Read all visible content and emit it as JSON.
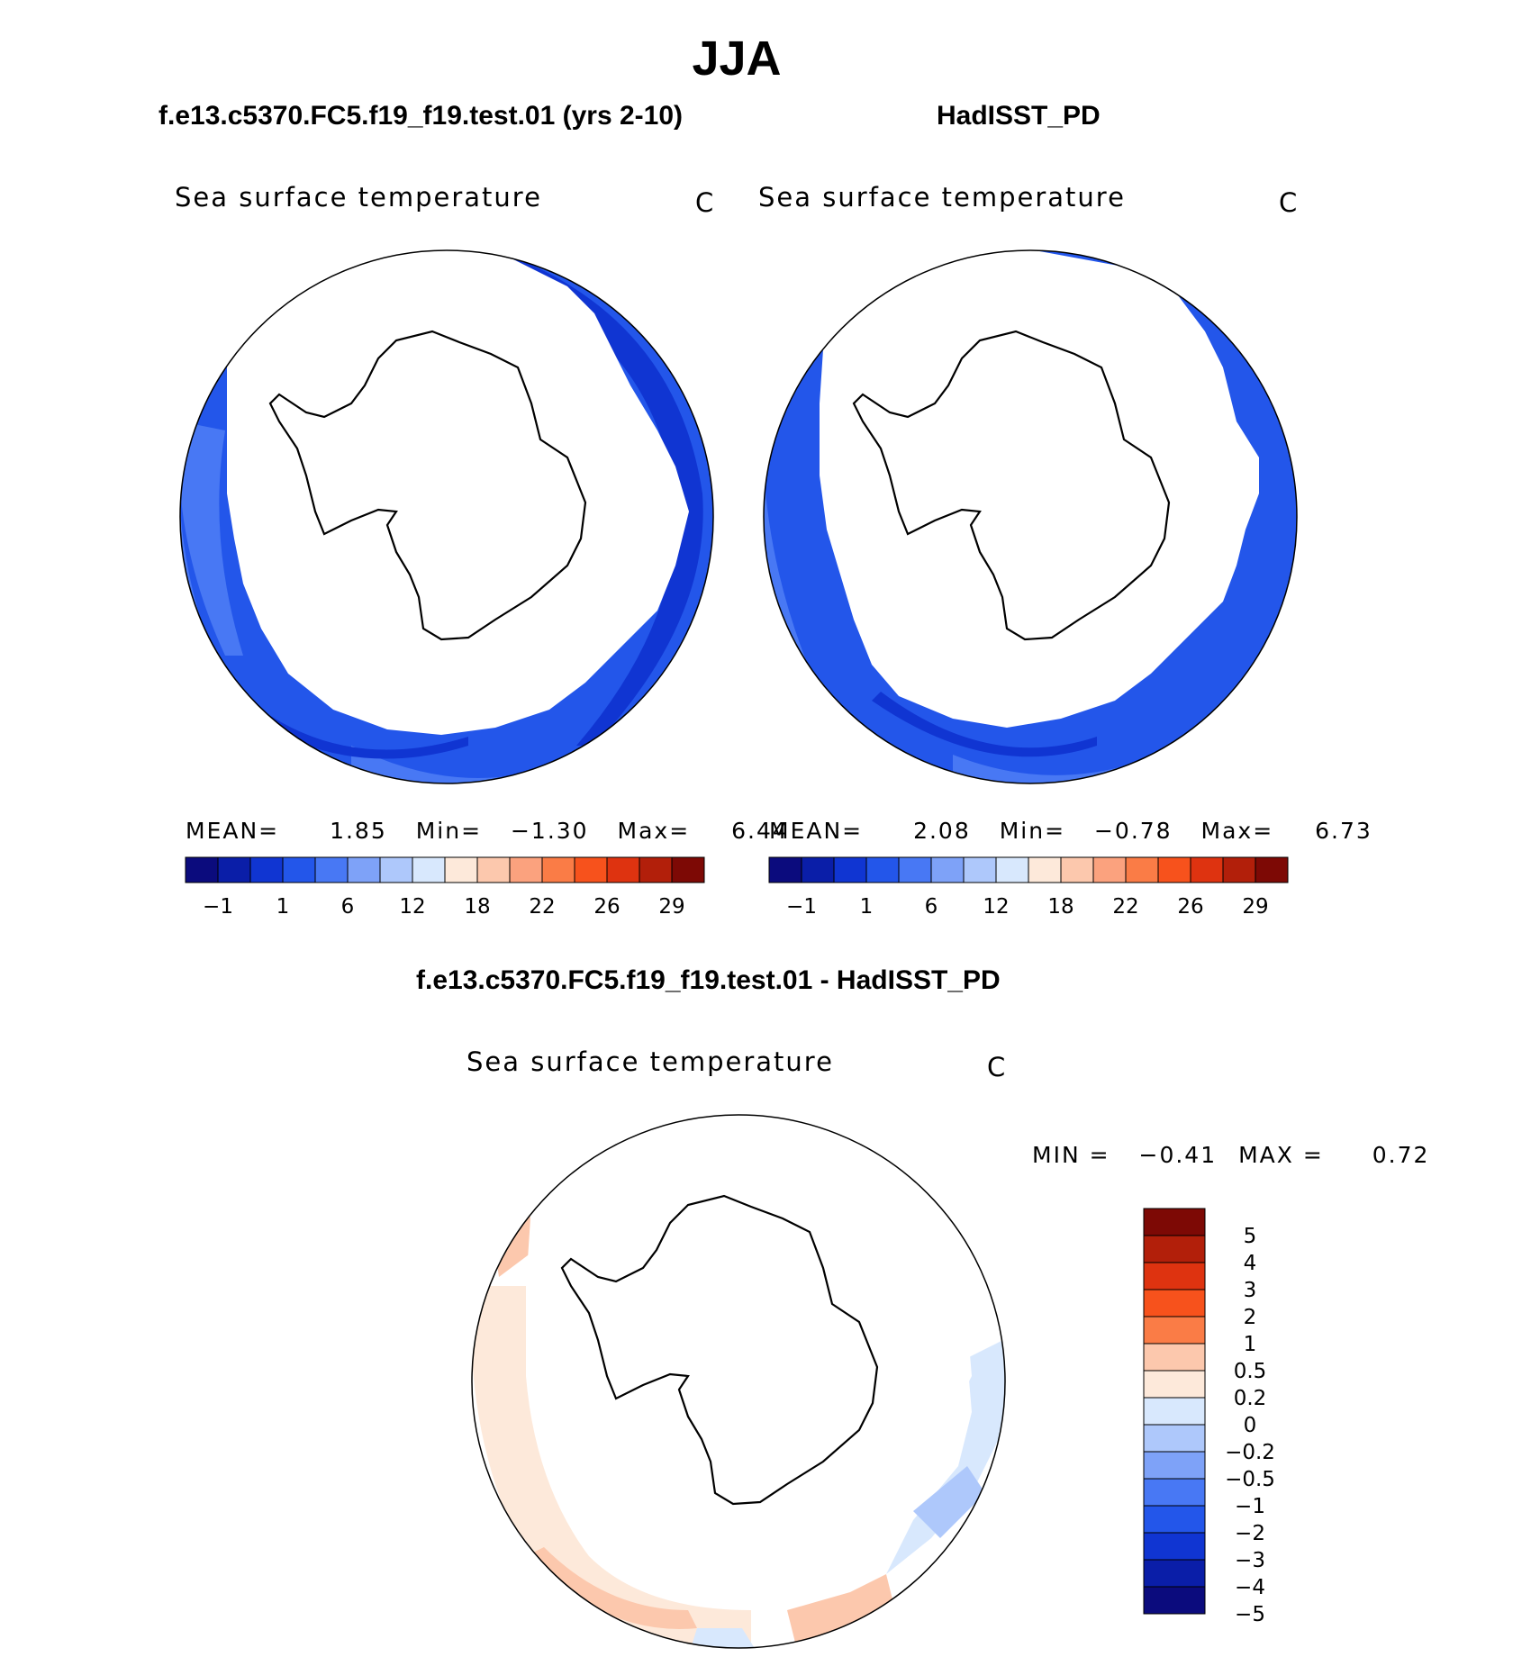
{
  "season": "JJA",
  "panels": [
    {
      "title": "f.e13.c5370.FC5.f19_f19.test.01 (yrs 2-10)",
      "variable": "Sea surface temperature",
      "units": "C",
      "stats": {
        "mean_label": "MEAN=",
        "mean": "1.85",
        "min_label": "Min=",
        "min": "−1.30",
        "max_label": "Max=",
        "max": "6.44"
      }
    },
    {
      "title": "HadISST_PD",
      "variable": "Sea surface temperature",
      "units": "C",
      "stats": {
        "mean_label": "MEAN=",
        "mean": "2.08",
        "min_label": "Min=",
        "min": "−0.78",
        "max_label": "Max=",
        "max": "6.73"
      }
    },
    {
      "title": "f.e13.c5370.FC5.f19_f19.test.01 - HadISST_PD",
      "variable": "Sea surface temperature",
      "units": "C",
      "stats": {
        "min_label": "MIN =",
        "min": "−0.41",
        "max_label": "MAX =",
        "max": "0.72"
      }
    }
  ],
  "colorbars": {
    "abs": {
      "colors": [
        "#0b0b7d",
        "#0a1ea8",
        "#1035d2",
        "#2356ea",
        "#4878f4",
        "#7ea2f8",
        "#aec8fb",
        "#d8e8fd",
        "#fde9da",
        "#fcc8ad",
        "#fba27e",
        "#fa7c46",
        "#f7521c",
        "#de3310",
        "#b21f0a",
        "#7d0905"
      ],
      "tick_labels": [
        "−1",
        "1",
        "6",
        "12",
        "18",
        "22",
        "26",
        "29"
      ]
    },
    "diff": {
      "colors": [
        "#7d0905",
        "#b21f0a",
        "#de3310",
        "#f7521c",
        "#fa7c46",
        "#fcc8ad",
        "#fde9da",
        "#d8e8fd",
        "#aec8fb",
        "#7ea2f8",
        "#4878f4",
        "#2356ea",
        "#1035d2",
        "#0a1ea8",
        "#0b0b7d"
      ],
      "tick_labels": [
        "5",
        "4",
        "3",
        "2",
        "1",
        "0.5",
        "0.2",
        "0",
        "−0.2",
        "−0.5",
        "−1",
        "−2",
        "−3",
        "−4",
        "−5"
      ]
    }
  },
  "chart_data": [
    {
      "type": "heatmap",
      "projection": "south-polar stereographic",
      "title": "f.e13.c5370.FC5.f19_f19.test.01 (yrs 2-10)",
      "variable": "Sea surface temperature",
      "units": "C",
      "mean": 1.85,
      "min": -1.3,
      "max": 6.44,
      "contour_levels": [
        -1,
        1,
        6,
        12,
        18,
        22,
        26,
        29
      ]
    },
    {
      "type": "heatmap",
      "projection": "south-polar stereographic",
      "title": "HadISST_PD",
      "variable": "Sea surface temperature",
      "units": "C",
      "mean": 2.08,
      "min": -0.78,
      "max": 6.73,
      "contour_levels": [
        -1,
        1,
        6,
        12,
        18,
        22,
        26,
        29
      ]
    },
    {
      "type": "heatmap",
      "projection": "south-polar stereographic",
      "title": "f.e13.c5370.FC5.f19_f19.test.01 - HadISST_PD",
      "variable": "Sea surface temperature",
      "units": "C",
      "min": -0.41,
      "max": 0.72,
      "contour_levels": [
        -5,
        -4,
        -3,
        -2,
        -1,
        -0.5,
        -0.2,
        0,
        0.2,
        0.5,
        1,
        2,
        3,
        4,
        5
      ]
    }
  ]
}
